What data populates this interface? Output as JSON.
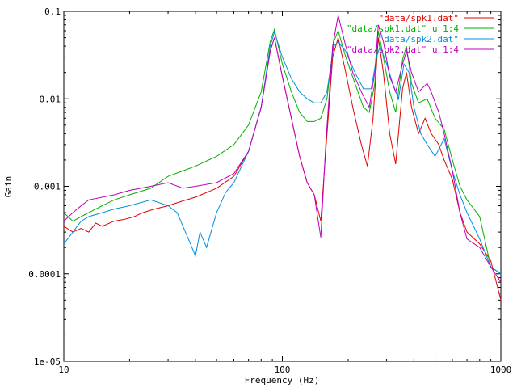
{
  "chart_data": {
    "type": "line",
    "title": "",
    "xlabel": "Frequency (Hz)",
    "ylabel": "Gain",
    "x_scale": "log",
    "y_scale": "log",
    "xlim": [
      10,
      1000
    ],
    "ylim": [
      1e-05,
      0.1
    ],
    "x_ticks": [
      {
        "value": 10,
        "label": "10"
      },
      {
        "value": 100,
        "label": "100"
      },
      {
        "value": 1000,
        "label": "1000"
      }
    ],
    "y_ticks": [
      {
        "value": 1e-05,
        "label": "1e-05"
      },
      {
        "value": 0.0001,
        "label": "0.0001"
      },
      {
        "value": 0.001,
        "label": "0.001"
      },
      {
        "value": 0.01,
        "label": "0.01"
      },
      {
        "value": 0.1,
        "label": "0.1"
      }
    ],
    "grid": false,
    "legend_position": "top-right",
    "series": [
      {
        "name": "\"data/spk1.dat\"",
        "color": "#e00000",
        "points": [
          [
            10,
            0.00035
          ],
          [
            11,
            0.0003
          ],
          [
            12,
            0.00033
          ],
          [
            13,
            0.0003
          ],
          [
            14,
            0.00038
          ],
          [
            15,
            0.00035
          ],
          [
            17,
            0.0004
          ],
          [
            19,
            0.00042
          ],
          [
            21,
            0.00045
          ],
          [
            23,
            0.0005
          ],
          [
            26,
            0.00055
          ],
          [
            30,
            0.0006
          ],
          [
            35,
            0.00068
          ],
          [
            40,
            0.00075
          ],
          [
            50,
            0.00095
          ],
          [
            60,
            0.0013
          ],
          [
            70,
            0.0025
          ],
          [
            80,
            0.008
          ],
          [
            88,
            0.035
          ],
          [
            92,
            0.05
          ],
          [
            100,
            0.018
          ],
          [
            110,
            0.006
          ],
          [
            120,
            0.0022
          ],
          [
            130,
            0.0011
          ],
          [
            140,
            0.0008
          ],
          [
            150,
            0.0004
          ],
          [
            158,
            0.0025
          ],
          [
            170,
            0.03
          ],
          [
            180,
            0.05
          ],
          [
            195,
            0.02
          ],
          [
            210,
            0.008
          ],
          [
            230,
            0.003
          ],
          [
            245,
            0.0017
          ],
          [
            260,
            0.006
          ],
          [
            275,
            0.05
          ],
          [
            290,
            0.02
          ],
          [
            310,
            0.004
          ],
          [
            330,
            0.0018
          ],
          [
            355,
            0.013
          ],
          [
            370,
            0.02
          ],
          [
            390,
            0.008
          ],
          [
            420,
            0.004
          ],
          [
            450,
            0.006
          ],
          [
            480,
            0.004
          ],
          [
            520,
            0.003
          ],
          [
            550,
            0.002
          ],
          [
            600,
            0.0012
          ],
          [
            650,
            0.0005
          ],
          [
            700,
            0.0003
          ],
          [
            800,
            0.00022
          ],
          [
            900,
            0.00014
          ],
          [
            1000,
            5e-05
          ]
        ]
      },
      {
        "name": "\"data/spk1.dat\" u 1:4",
        "color": "#00b000",
        "points": [
          [
            10,
            0.0005
          ],
          [
            11,
            0.0004
          ],
          [
            12,
            0.00045
          ],
          [
            13,
            0.0005
          ],
          [
            15,
            0.0006
          ],
          [
            17,
            0.0007
          ],
          [
            20,
            0.0008
          ],
          [
            25,
            0.00095
          ],
          [
            30,
            0.0013
          ],
          [
            35,
            0.0015
          ],
          [
            40,
            0.0017
          ],
          [
            50,
            0.0022
          ],
          [
            60,
            0.003
          ],
          [
            70,
            0.005
          ],
          [
            80,
            0.012
          ],
          [
            88,
            0.045
          ],
          [
            92,
            0.062
          ],
          [
            100,
            0.025
          ],
          [
            110,
            0.012
          ],
          [
            120,
            0.007
          ],
          [
            130,
            0.0055
          ],
          [
            140,
            0.0055
          ],
          [
            150,
            0.006
          ],
          [
            160,
            0.01
          ],
          [
            172,
            0.045
          ],
          [
            180,
            0.06
          ],
          [
            195,
            0.03
          ],
          [
            215,
            0.015
          ],
          [
            235,
            0.008
          ],
          [
            250,
            0.007
          ],
          [
            265,
            0.015
          ],
          [
            275,
            0.06
          ],
          [
            290,
            0.03
          ],
          [
            310,
            0.012
          ],
          [
            330,
            0.007
          ],
          [
            355,
            0.028
          ],
          [
            370,
            0.04
          ],
          [
            390,
            0.015
          ],
          [
            420,
            0.009
          ],
          [
            460,
            0.01
          ],
          [
            500,
            0.006
          ],
          [
            550,
            0.0045
          ],
          [
            600,
            0.002
          ],
          [
            650,
            0.001
          ],
          [
            700,
            0.0007
          ],
          [
            800,
            0.00045
          ],
          [
            900,
            0.00012
          ],
          [
            1000,
            0.0001
          ]
        ]
      },
      {
        "name": "\"data/spk2.dat\"",
        "color": "#0090e0",
        "points": [
          [
            10,
            0.00022
          ],
          [
            11,
            0.0003
          ],
          [
            12,
            0.0004
          ],
          [
            13,
            0.00045
          ],
          [
            15,
            0.0005
          ],
          [
            17,
            0.00055
          ],
          [
            20,
            0.0006
          ],
          [
            25,
            0.0007
          ],
          [
            30,
            0.0006
          ],
          [
            33,
            0.0005
          ],
          [
            36,
            0.0003
          ],
          [
            38,
            0.00022
          ],
          [
            40,
            0.00016
          ],
          [
            42,
            0.0003
          ],
          [
            45,
            0.0002
          ],
          [
            50,
            0.0005
          ],
          [
            55,
            0.00085
          ],
          [
            60,
            0.0011
          ],
          [
            70,
            0.0025
          ],
          [
            80,
            0.008
          ],
          [
            88,
            0.04
          ],
          [
            92,
            0.058
          ],
          [
            100,
            0.03
          ],
          [
            110,
            0.017
          ],
          [
            120,
            0.012
          ],
          [
            130,
            0.01
          ],
          [
            140,
            0.009
          ],
          [
            150,
            0.009
          ],
          [
            160,
            0.012
          ],
          [
            172,
            0.04
          ],
          [
            180,
            0.045
          ],
          [
            195,
            0.035
          ],
          [
            215,
            0.02
          ],
          [
            235,
            0.013
          ],
          [
            255,
            0.013
          ],
          [
            270,
            0.03
          ],
          [
            280,
            0.04
          ],
          [
            300,
            0.025
          ],
          [
            320,
            0.015
          ],
          [
            340,
            0.01
          ],
          [
            360,
            0.025
          ],
          [
            380,
            0.02
          ],
          [
            400,
            0.008
          ],
          [
            430,
            0.004
          ],
          [
            460,
            0.003
          ],
          [
            500,
            0.0022
          ],
          [
            550,
            0.0035
          ],
          [
            600,
            0.0015
          ],
          [
            650,
            0.0008
          ],
          [
            700,
            0.0005
          ],
          [
            800,
            0.00025
          ],
          [
            900,
            0.00012
          ],
          [
            1000,
            0.0001
          ]
        ]
      },
      {
        "name": "\"data/spk2.dat\" u 1:4",
        "color": "#c000c0",
        "points": [
          [
            10,
            0.0004
          ],
          [
            11,
            0.0005
          ],
          [
            12,
            0.0006
          ],
          [
            13,
            0.0007
          ],
          [
            15,
            0.00075
          ],
          [
            17,
            0.0008
          ],
          [
            20,
            0.0009
          ],
          [
            25,
            0.001
          ],
          [
            30,
            0.0011
          ],
          [
            35,
            0.00095
          ],
          [
            40,
            0.001
          ],
          [
            50,
            0.0011
          ],
          [
            60,
            0.0014
          ],
          [
            70,
            0.0025
          ],
          [
            80,
            0.008
          ],
          [
            88,
            0.035
          ],
          [
            92,
            0.05
          ],
          [
            100,
            0.018
          ],
          [
            110,
            0.006
          ],
          [
            120,
            0.0022
          ],
          [
            130,
            0.0011
          ],
          [
            140,
            0.0008
          ],
          [
            150,
            0.00026
          ],
          [
            158,
            0.003
          ],
          [
            170,
            0.04
          ],
          [
            180,
            0.09
          ],
          [
            195,
            0.04
          ],
          [
            210,
            0.02
          ],
          [
            230,
            0.012
          ],
          [
            250,
            0.008
          ],
          [
            265,
            0.02
          ],
          [
            275,
            0.07
          ],
          [
            290,
            0.045
          ],
          [
            310,
            0.018
          ],
          [
            330,
            0.012
          ],
          [
            355,
            0.025
          ],
          [
            370,
            0.035
          ],
          [
            390,
            0.02
          ],
          [
            420,
            0.012
          ],
          [
            460,
            0.015
          ],
          [
            480,
            0.012
          ],
          [
            520,
            0.007
          ],
          [
            550,
            0.004
          ],
          [
            600,
            0.0015
          ],
          [
            650,
            0.0005
          ],
          [
            700,
            0.00025
          ],
          [
            800,
            0.0002
          ],
          [
            900,
            0.00012
          ],
          [
            1000,
            8e-05
          ]
        ]
      }
    ]
  }
}
